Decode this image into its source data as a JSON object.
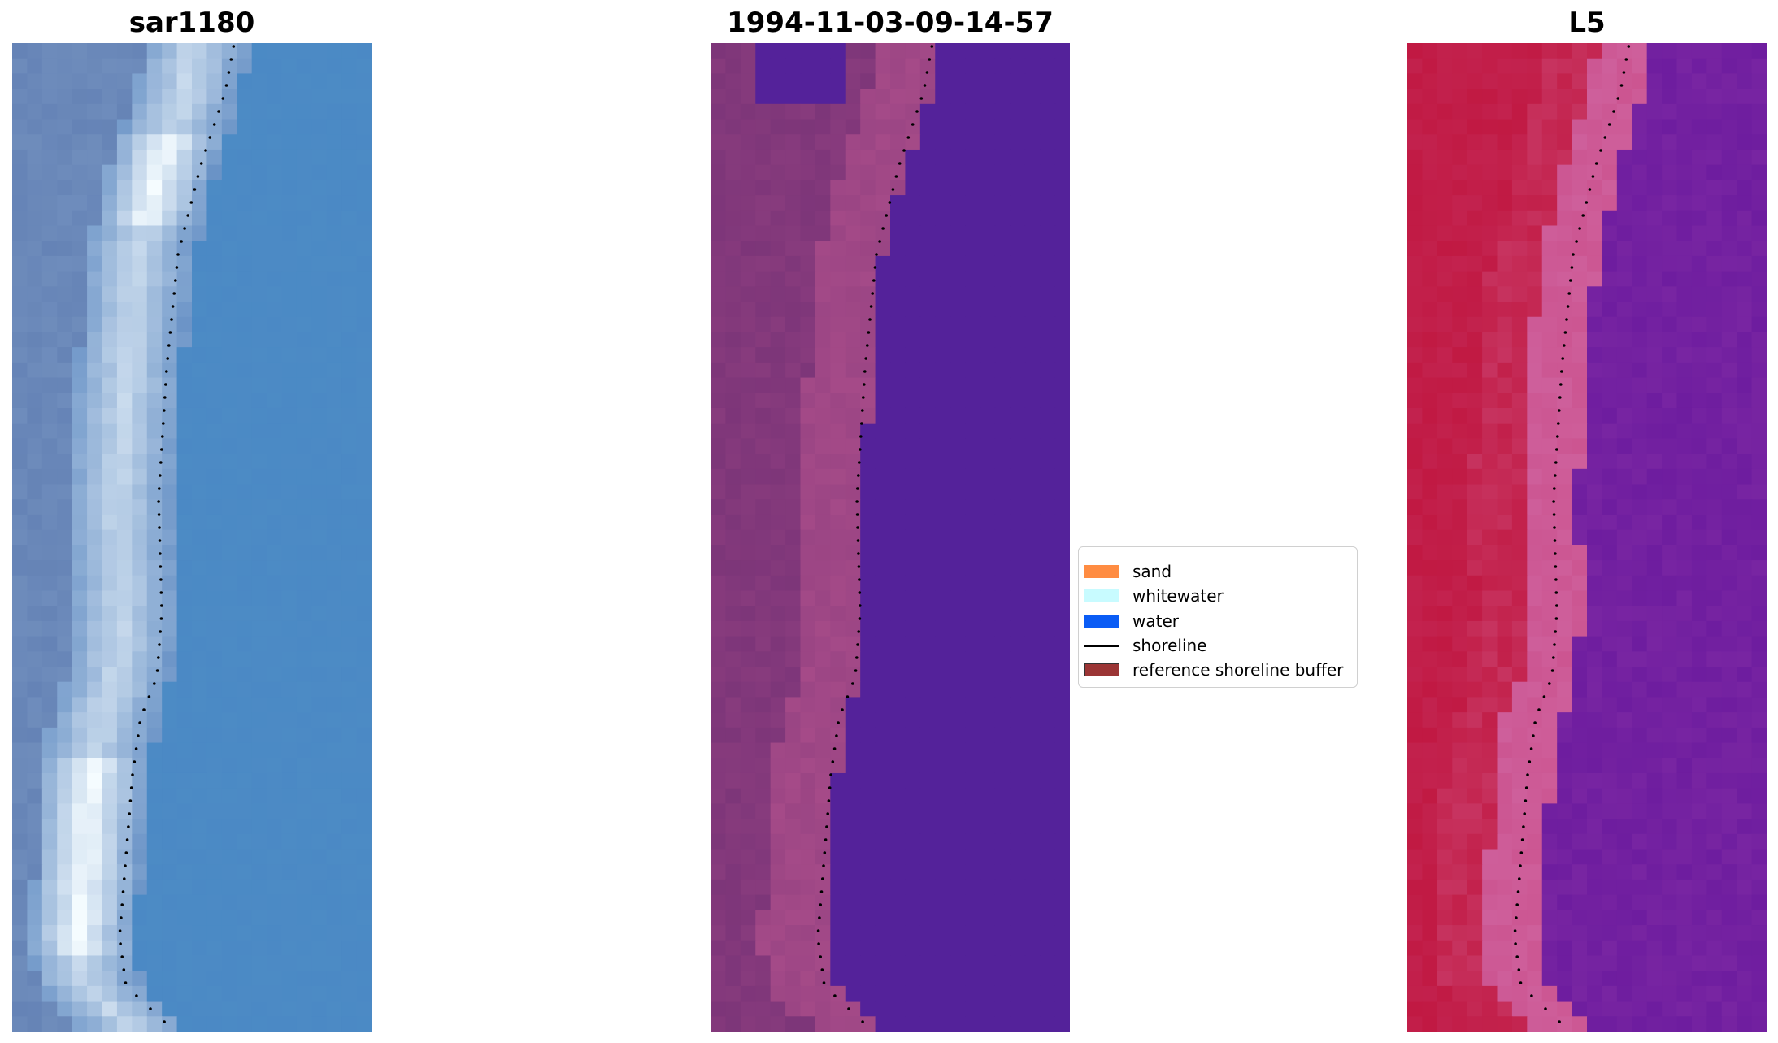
{
  "panels": [
    {
      "title": "sar1180",
      "style": "rgb"
    },
    {
      "title": "1994-11-03-09-14-57",
      "style": "classified"
    },
    {
      "title": "L5",
      "style": "index"
    }
  ],
  "legend": {
    "items": [
      {
        "label": "sand",
        "color": "#ff8c42",
        "kind": "patch"
      },
      {
        "label": "whitewater",
        "color": "#c8fbff",
        "kind": "patch"
      },
      {
        "label": "water",
        "color": "#0a5cf5",
        "kind": "patch"
      },
      {
        "label": "shoreline",
        "color": "#000000",
        "kind": "line"
      },
      {
        "label": "reference shoreline buffer",
        "color": "#9b3535",
        "kind": "patch"
      }
    ]
  },
  "colors": {
    "rgb_sea": "#4a86c4",
    "classified_land": "#7a3478",
    "classified_sand_band": "#b0508c",
    "classified_water": "#54229a",
    "index_land": "#c0163f",
    "index_water": "#6a1a9e",
    "shoreline_dots": "#000000"
  }
}
